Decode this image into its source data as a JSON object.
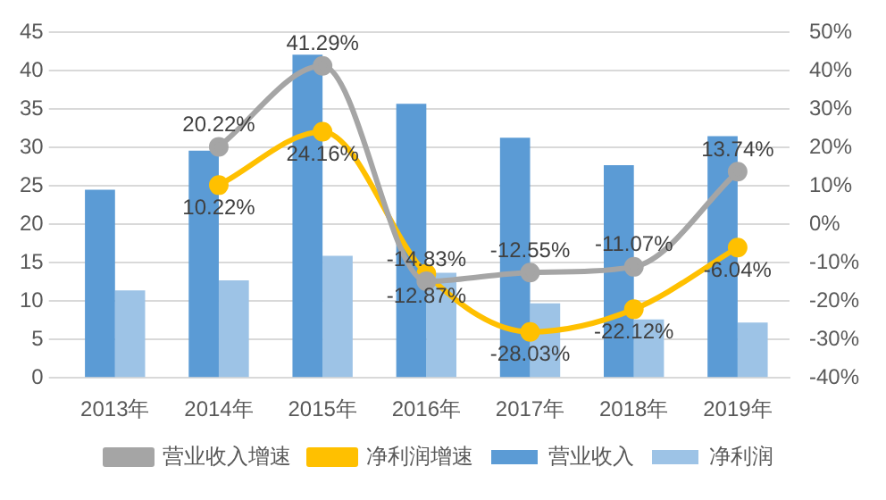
{
  "chart_data": {
    "type": "bar",
    "categories": [
      "2013年",
      "2014年",
      "2015年",
      "2016年",
      "2017年",
      "2018年",
      "2019年"
    ],
    "series": [
      {
        "name": "营业收入",
        "color": "#5b9bd5",
        "values": [
          24.5,
          29.6,
          42.1,
          35.7,
          31.3,
          27.7,
          31.5
        ]
      },
      {
        "name": "净利润",
        "color": "#9dc3e6",
        "values": [
          11.4,
          12.7,
          15.9,
          13.7,
          9.7,
          7.6,
          7.2
        ]
      },
      {
        "name": "营业收入增速",
        "type": "line",
        "axis": "y2",
        "color": "#a5a5a5",
        "marker": "circle",
        "values": [
          null,
          20.22,
          41.29,
          -14.83,
          -12.55,
          -11.07,
          13.74
        ],
        "value_labels": [
          null,
          "20.22%",
          "41.29%",
          "-14.83%",
          "-12.55%",
          "-11.07%",
          "13.74%"
        ]
      },
      {
        "name": "净利润增速",
        "type": "line",
        "axis": "y2",
        "color": "#ffc000",
        "marker": "circle",
        "values": [
          null,
          10.22,
          24.16,
          -12.87,
          -28.03,
          -22.12,
          -6.04
        ],
        "value_labels": [
          null,
          "10.22%",
          "24.16%",
          "-12.87%",
          "-28.03%",
          "-22.12%",
          "-6.04%"
        ]
      }
    ],
    "ylim": [
      0,
      45
    ],
    "yticks": [
      0,
      5,
      10,
      15,
      20,
      25,
      30,
      35,
      40,
      45
    ],
    "y2lim": [
      -40,
      50
    ],
    "y2ticks": [
      {
        "value": -40,
        "label": "-40%"
      },
      {
        "value": -30,
        "label": "-30%"
      },
      {
        "value": -20,
        "label": "-20%"
      },
      {
        "value": -10,
        "label": "-10%"
      },
      {
        "value": 0,
        "label": "0%"
      },
      {
        "value": 10,
        "label": "10%"
      },
      {
        "value": 20,
        "label": "20%"
      },
      {
        "value": 30,
        "label": "30%"
      },
      {
        "value": 40,
        "label": "40%"
      },
      {
        "value": 50,
        "label": "50%"
      }
    ],
    "grid": "y",
    "legend": "bottom"
  }
}
